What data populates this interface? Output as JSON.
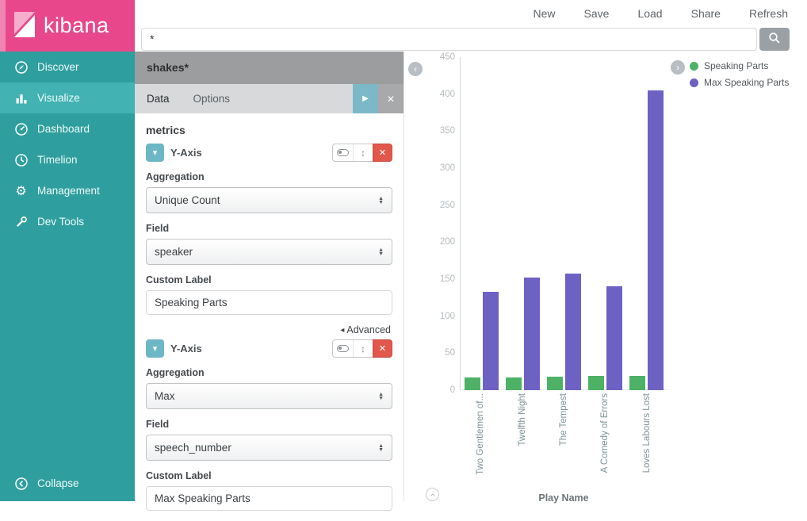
{
  "colors": {
    "brand_pink": "#e8488b",
    "sidebar_teal": "#2f9e9e",
    "sidebar_active_teal": "#42b2b2",
    "accent_teal": "#6db6c5",
    "delete_red": "#e2574c",
    "bar_green": "#4db265",
    "bar_purple": "#6e61c4"
  },
  "icons": {
    "gear": "⚙",
    "play": "▶",
    "close": "✕",
    "delete": "✕",
    "caret_down": "▾",
    "up_down": "↕",
    "chevron_left": "‹",
    "chevron_right": "›",
    "advanced_left": "◂",
    "select_up": "▲",
    "select_down": "▼"
  },
  "logo": {
    "text": "kibana"
  },
  "top_nav": {
    "items": [
      "New",
      "Save",
      "Load",
      "Share",
      "Refresh"
    ]
  },
  "search": {
    "value": "*"
  },
  "sidebar": {
    "items": [
      "Discover",
      "Visualize",
      "Dashboard",
      "Timelion",
      "Management",
      "Dev Tools"
    ],
    "collapse_label": "Collapse"
  },
  "editor": {
    "index_pattern": "shakes*",
    "tabs": {
      "data": "Data",
      "options": "Options"
    },
    "metrics_heading": "metrics",
    "advanced_label": "Advanced",
    "aggs": [
      {
        "title": "Y-Axis",
        "aggregation_label": "Aggregation",
        "aggregation_value": "Unique Count",
        "field_label": "Field",
        "field_value": "speaker",
        "custom_label_label": "Custom Label",
        "custom_label_value": "Speaking Parts"
      },
      {
        "title": "Y-Axis",
        "aggregation_label": "Aggregation",
        "aggregation_value": "Max",
        "field_label": "Field",
        "field_value": "speech_number",
        "custom_label_label": "Custom Label",
        "custom_label_value": "Max Speaking Parts"
      }
    ]
  },
  "chart_data": {
    "type": "bar",
    "title": "",
    "categories": [
      "Two Gentlemen of...",
      "Twelfth Night",
      "The Tempest",
      "A Comedy of Errors",
      "Loves Labours Lost"
    ],
    "series": [
      {
        "name": "Speaking Parts",
        "color": "#4db265",
        "values": [
          17,
          17,
          18,
          19,
          19
        ]
      },
      {
        "name": "Max Speaking Parts",
        "color": "#6e61c4",
        "values": [
          133,
          152,
          158,
          140,
          405
        ]
      }
    ],
    "xlabel": "Play Name",
    "ylabel": "",
    "ylim": [
      0,
      450
    ],
    "ytick_step": 50,
    "legend_position": "right",
    "grid": false
  }
}
